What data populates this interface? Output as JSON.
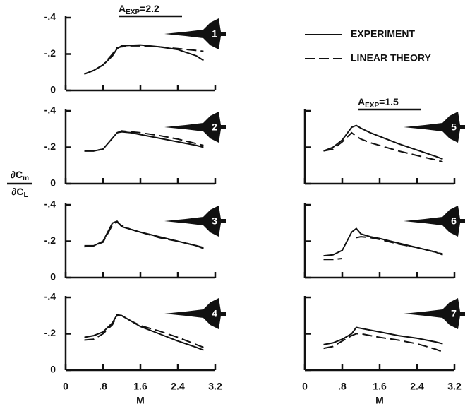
{
  "chart_data": [
    {
      "type": "line",
      "label": "1",
      "annotation": [
        "A",
        "EXP",
        "=2.2"
      ],
      "x": [
        0.4,
        0.6,
        0.8,
        1.0,
        1.1,
        1.2,
        1.4,
        1.6,
        2.0,
        2.4,
        2.8,
        2.95
      ],
      "series": [
        {
          "name": "EXPERIMENT",
          "color": "#111111",
          "dash": false,
          "values": [
            -0.09,
            -0.11,
            -0.14,
            -0.19,
            -0.23,
            -0.245,
            -0.248,
            -0.25,
            -0.24,
            -0.225,
            -0.19,
            -0.165
          ]
        },
        {
          "name": "LINEAR THEORY",
          "color": "#111111",
          "dash": true,
          "values": [
            -0.09,
            -0.11,
            -0.14,
            -0.2,
            -0.235,
            -0.24,
            -0.245,
            -0.245,
            -0.24,
            -0.23,
            -0.22,
            -0.215
          ]
        }
      ],
      "xlim": [
        0,
        3.2
      ],
      "ylim": [
        0,
        -0.4
      ],
      "xticks": [
        0,
        0.8,
        1.6,
        2.4,
        3.2
      ],
      "yticks": [
        0,
        {
          "value": -0.2,
          "label": "-.2"
        },
        {
          "value": -0.4,
          "label": "-.4"
        }
      ],
      "show_xticklabels": false,
      "show_yticklabels": true
    },
    {
      "type": "line",
      "label": "2",
      "ylabel": {
        "numerator": [
          "∂C",
          "m"
        ],
        "denominator": [
          "∂C",
          "L"
        ]
      },
      "x": [
        0.4,
        0.6,
        0.8,
        1.0,
        1.1,
        1.2,
        1.4,
        1.6,
        2.0,
        2.4,
        2.8,
        2.95
      ],
      "series": [
        {
          "color": "#111111",
          "dash": false,
          "values": [
            -0.18,
            -0.18,
            -0.19,
            -0.25,
            -0.28,
            -0.285,
            -0.28,
            -0.27,
            -0.25,
            -0.23,
            -0.21,
            -0.2
          ]
        },
        {
          "color": "#111111",
          "dash": true,
          "values": [
            -0.18,
            -0.18,
            -0.19,
            null,
            -0.28,
            -0.29,
            -0.285,
            -0.28,
            -0.265,
            -0.245,
            -0.22,
            -0.21
          ]
        }
      ],
      "xlim": [
        0,
        3.2
      ],
      "ylim": [
        0,
        -0.4
      ],
      "xticks": [
        0,
        0.8,
        1.6,
        2.4,
        3.2
      ],
      "yticks": [
        0,
        {
          "value": -0.2,
          "label": "-.2"
        },
        {
          "value": -0.4,
          "label": "-.4"
        }
      ],
      "show_xticklabels": false,
      "show_yticklabels": true
    },
    {
      "type": "line",
      "label": "3",
      "x": [
        0.4,
        0.6,
        0.8,
        1.0,
        1.1,
        1.2,
        1.4,
        1.6,
        2.0,
        2.4,
        2.8,
        2.95
      ],
      "series": [
        {
          "color": "#111111",
          "dash": false,
          "values": [
            -0.17,
            -0.175,
            -0.2,
            -0.3,
            -0.31,
            -0.28,
            -0.265,
            -0.25,
            -0.225,
            -0.2,
            -0.175,
            -0.165
          ]
        },
        {
          "color": "#111111",
          "dash": true,
          "values": [
            -0.175,
            -0.175,
            -0.195,
            -0.29,
            -0.305,
            -0.285,
            -0.265,
            -0.25,
            -0.22,
            -0.2,
            -0.175,
            -0.16
          ]
        }
      ],
      "xlim": [
        0,
        3.2
      ],
      "ylim": [
        0,
        -0.4
      ],
      "xticks": [
        0,
        0.8,
        1.6,
        2.4,
        3.2
      ],
      "yticks": [
        0,
        {
          "value": -0.2,
          "label": "-.2"
        },
        {
          "value": -0.4,
          "label": "-.4"
        }
      ],
      "show_xticklabels": false,
      "show_yticklabels": true
    },
    {
      "type": "line",
      "label": "4",
      "xlabel": "M",
      "x": [
        0.4,
        0.6,
        0.8,
        1.0,
        1.1,
        1.2,
        1.4,
        1.6,
        2.0,
        2.4,
        2.8,
        2.95
      ],
      "series": [
        {
          "color": "#111111",
          "dash": false,
          "values": [
            -0.18,
            -0.19,
            -0.21,
            -0.26,
            -0.305,
            -0.3,
            -0.27,
            -0.24,
            -0.2,
            -0.16,
            -0.125,
            -0.11
          ]
        },
        {
          "color": "#111111",
          "dash": true,
          "values": [
            -0.165,
            -0.17,
            -0.2,
            -0.25,
            -0.3,
            -0.3,
            -0.27,
            -0.245,
            -0.215,
            -0.18,
            -0.14,
            -0.125
          ]
        }
      ],
      "xlim": [
        0,
        3.2
      ],
      "ylim": [
        0,
        -0.4
      ],
      "xticks": [
        0,
        {
          "value": 0.8,
          "label": ".8"
        },
        1.6,
        2.4,
        3.2
      ],
      "yticks": [
        0,
        {
          "value": -0.2,
          "label": "-.2"
        },
        {
          "value": -0.4,
          "label": "-.4"
        }
      ],
      "show_xticklabels": true,
      "show_yticklabels": true
    },
    {
      "type": "line",
      "label": "5",
      "annotation": [
        "A",
        "EXP",
        "=1.5"
      ],
      "x": [
        0.4,
        0.6,
        0.8,
        1.0,
        1.1,
        1.2,
        1.4,
        1.6,
        2.0,
        2.4,
        2.8,
        2.95
      ],
      "series": [
        {
          "color": "#111111",
          "dash": false,
          "values": [
            -0.18,
            -0.2,
            -0.24,
            -0.31,
            -0.32,
            -0.305,
            -0.28,
            -0.26,
            -0.22,
            -0.185,
            -0.15,
            -0.135
          ]
        },
        {
          "color": "#111111",
          "dash": true,
          "values": [
            -0.18,
            -0.19,
            -0.23,
            -0.28,
            -0.26,
            -0.245,
            -0.225,
            -0.21,
            -0.18,
            -0.155,
            -0.13,
            -0.12
          ]
        }
      ],
      "xlim": [
        0,
        3.2
      ],
      "ylim": [
        0,
        -0.4
      ],
      "xticks": [
        0,
        0.8,
        1.6,
        2.4,
        3.2
      ],
      "yticks": [
        0,
        -0.2,
        -0.4
      ],
      "show_xticklabels": false,
      "show_yticklabels": false
    },
    {
      "type": "line",
      "label": "6",
      "x": [
        0.4,
        0.6,
        0.8,
        1.0,
        1.1,
        1.2,
        1.4,
        1.6,
        2.0,
        2.4,
        2.8,
        2.95
      ],
      "series": [
        {
          "color": "#111111",
          "dash": false,
          "values": [
            -0.12,
            -0.125,
            -0.15,
            -0.25,
            -0.27,
            -0.24,
            -0.225,
            -0.215,
            -0.19,
            -0.165,
            -0.14,
            -0.125
          ]
        },
        {
          "color": "#111111",
          "dash": true,
          "values": [
            -0.1,
            -0.1,
            -0.105,
            null,
            -0.22,
            -0.225,
            -0.22,
            -0.21,
            -0.185,
            -0.165,
            -0.14,
            -0.13
          ]
        }
      ],
      "xlim": [
        0,
        3.2
      ],
      "ylim": [
        0,
        -0.4
      ],
      "xticks": [
        0,
        0.8,
        1.6,
        2.4,
        3.2
      ],
      "yticks": [
        0,
        -0.2,
        -0.4
      ],
      "show_xticklabels": false,
      "show_yticklabels": false
    },
    {
      "type": "line",
      "label": "7",
      "xlabel": "M",
      "x": [
        0.4,
        0.6,
        0.8,
        1.0,
        1.1,
        1.2,
        1.4,
        1.6,
        2.0,
        2.4,
        2.8,
        2.95
      ],
      "series": [
        {
          "color": "#111111",
          "dash": false,
          "values": [
            -0.14,
            -0.15,
            -0.17,
            -0.2,
            -0.235,
            -0.23,
            -0.22,
            -0.21,
            -0.19,
            -0.175,
            -0.155,
            -0.145
          ]
        },
        {
          "color": "#111111",
          "dash": true,
          "values": [
            -0.12,
            -0.13,
            -0.16,
            -0.19,
            -0.2,
            -0.2,
            -0.19,
            -0.18,
            -0.165,
            -0.145,
            -0.115,
            -0.1
          ]
        }
      ],
      "xlim": [
        0,
        3.2
      ],
      "ylim": [
        0,
        -0.4
      ],
      "xticks": [
        0,
        {
          "value": 0.8,
          "label": ".8"
        },
        1.6,
        2.4,
        3.2
      ],
      "yticks": [
        0,
        -0.2,
        -0.4
      ],
      "show_xticklabels": true,
      "show_yticklabels": false
    }
  ]
}
